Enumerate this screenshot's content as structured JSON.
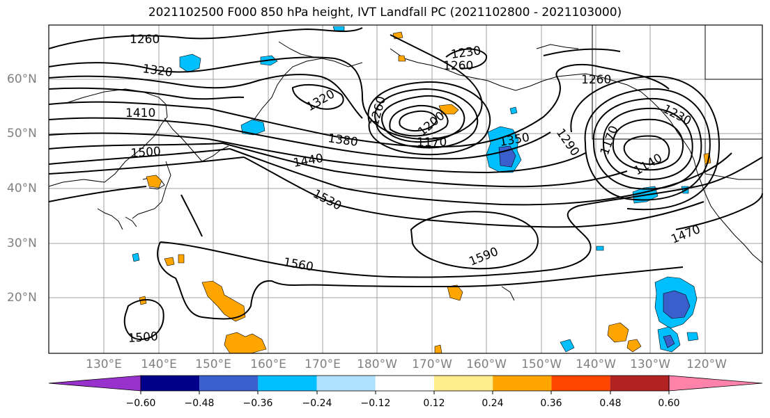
{
  "title": "2021102500 F000 850 hPa height, IVT Landfall PC (2021102800 - 2021103000)",
  "lat_labels": [
    "60°N",
    "50°N",
    "40°N",
    "30°N",
    "20°N"
  ],
  "lon_labels": [
    "130°E",
    "140°E",
    "150°E",
    "160°E",
    "170°E",
    "180°W",
    "170°W",
    "160°W",
    "150°W",
    "140°W",
    "130°W",
    "120°W"
  ],
  "contour_labels": {
    "c1": "1260",
    "c2": "1320",
    "c3": "1410",
    "c4": "1500",
    "c5": "1230",
    "c6": "1260",
    "c7": "1320",
    "c8": "1260",
    "c9": "1380",
    "c10": "1440",
    "c11": "1530",
    "c12": "1560",
    "c13": "1590",
    "c14": "1170",
    "c15": "1200",
    "c16": "1350",
    "c17": "1290",
    "c18": "1260",
    "c19": "1230",
    "c20": "1170",
    "c21": "1140",
    "c22": "1470",
    "c23": "1500"
  },
  "colorbar": {
    "ticks": [
      "−0.60",
      "−0.48",
      "−0.36",
      "−0.24",
      "−0.12",
      "0.12",
      "0.24",
      "0.36",
      "0.48",
      "0.60"
    ],
    "colors": [
      "#9932cc",
      "#00008b",
      "#3a5fcd",
      "#00bfff",
      "#b0e2ff",
      "#ffffff",
      "#ffec8b",
      "#ffa500",
      "#ff4500",
      "#b22222",
      "#ff82ab"
    ]
  },
  "style": {
    "positive_fill": "#ffa500",
    "positive_light": "#ffec8b",
    "negative_fill": "#00bfff",
    "negative_dark": "#3a5fcd",
    "negative_light": "#b0e2ff"
  }
}
